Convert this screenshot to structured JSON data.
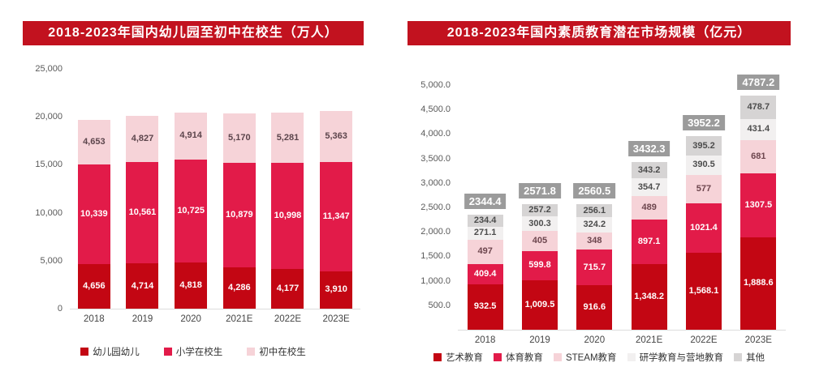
{
  "colors": {
    "title_bar": "#c2121f",
    "title_text": "#ffffff",
    "axis_text": "#595959",
    "dark_red": "#c30613",
    "crimson": "#e21b49",
    "pink": "#f6d3d8",
    "near_white": "#f2f0f0",
    "gray_segment": "#d6d4d4",
    "total_badge_bg": "#9b9b9b"
  },
  "chart_data": [
    {
      "type": "bar",
      "stacked": true,
      "title": "2018-2023年国内幼儿园至初中在校生（万人）",
      "unit": "万人",
      "categories": [
        "2018",
        "2019",
        "2020",
        "2021E",
        "2022E",
        "2023E"
      ],
      "series": [
        {
          "name": "幼儿园幼儿",
          "color": "#c30613",
          "label_color": "#ffffff",
          "values": [
            4656,
            4714,
            4818,
            4286,
            4177,
            3910
          ],
          "labels": [
            "4,656",
            "4,714",
            "4,818",
            "4,286",
            "4,177",
            "3,910"
          ]
        },
        {
          "name": "小学在校生",
          "color": "#e21b49",
          "label_color": "#ffffff",
          "values": [
            10339,
            10561,
            10725,
            10879,
            10998,
            11347
          ],
          "labels": [
            "10,339",
            "10,561",
            "10,725",
            "10,879",
            "10,998",
            "11,347"
          ]
        },
        {
          "name": "初中在校生",
          "color": "#f6d3d8",
          "label_color": "#5c454c",
          "values": [
            4653,
            4827,
            4914,
            5170,
            5281,
            5363
          ],
          "labels": [
            "4,653",
            "4,827",
            "4,914",
            "5,170",
            "5,281",
            "5,363"
          ]
        }
      ],
      "y_axis": {
        "min": 0,
        "max": 25000,
        "ticks": [
          "25,000",
          "20,000",
          "15,000",
          "10,000",
          "5,000",
          "0"
        ]
      },
      "totals": null,
      "legend_position": "bottom",
      "grid": false
    },
    {
      "type": "bar",
      "stacked": true,
      "title": "2018-2023年国内素质教育潜在市场规模（亿元）",
      "unit": "亿元",
      "categories": [
        "2018",
        "2019",
        "2020",
        "2021E",
        "2022E",
        "2023E"
      ],
      "series": [
        {
          "name": "艺术教育",
          "color": "#c30613",
          "label_color": "#ffffff",
          "values": [
            932.5,
            1009.5,
            916.6,
            1348.2,
            1568.1,
            1888.6
          ],
          "labels": [
            "932.5",
            "1,009.5",
            "916.6",
            "1,348.2",
            "1,568.1",
            "1,888.6"
          ]
        },
        {
          "name": "体育教育",
          "color": "#e21b49",
          "label_color": "#ffffff",
          "values": [
            409.4,
            599.8,
            715.7,
            897.1,
            1021.4,
            1307.5
          ],
          "labels": [
            "409.4",
            "599.8",
            "715.7",
            "897.1",
            "1021.4",
            "1307.5"
          ]
        },
        {
          "name": "STEAM教育",
          "color": "#f6d3d8",
          "label_color": "#6d464e",
          "values": [
            497,
            405,
            348,
            489,
            577,
            681
          ],
          "labels": [
            "497",
            "405",
            "348",
            "489",
            "577",
            "681"
          ]
        },
        {
          "name": "研学教育与营地教育",
          "color": "#f2f0f0",
          "label_color": "#4c4c4c",
          "values": [
            271.1,
            300.3,
            324.2,
            354.7,
            390.5,
            431.4
          ],
          "labels": [
            "271.1",
            "300.3",
            "324.2",
            "354.7",
            "390.5",
            "431.4"
          ]
        },
        {
          "name": "其他",
          "color": "#d6d4d4",
          "label_color": "#4c4c4c",
          "values": [
            234.4,
            257.2,
            256.1,
            343.2,
            395.2,
            478.7
          ],
          "labels": [
            "234.4",
            "257.2",
            "256.1",
            "343.2",
            "395.2",
            "478.7"
          ]
        }
      ],
      "y_axis": {
        "min": 0,
        "max": 5000,
        "ticks": [
          "5,000.0",
          "4,500.0",
          "4,000.0",
          "3,500.0",
          "3,000.0",
          "2,500.0",
          "2,000.0",
          "1,500.0",
          "1,000.0",
          "500.0"
        ]
      },
      "totals": {
        "labels": [
          "2344.4",
          "2571.8",
          "2560.5",
          "3432.3",
          "3952.2",
          "4787.2"
        ],
        "bg": "#9b9b9b",
        "color": "#ffffff"
      },
      "legend_position": "bottom",
      "grid": false
    }
  ]
}
